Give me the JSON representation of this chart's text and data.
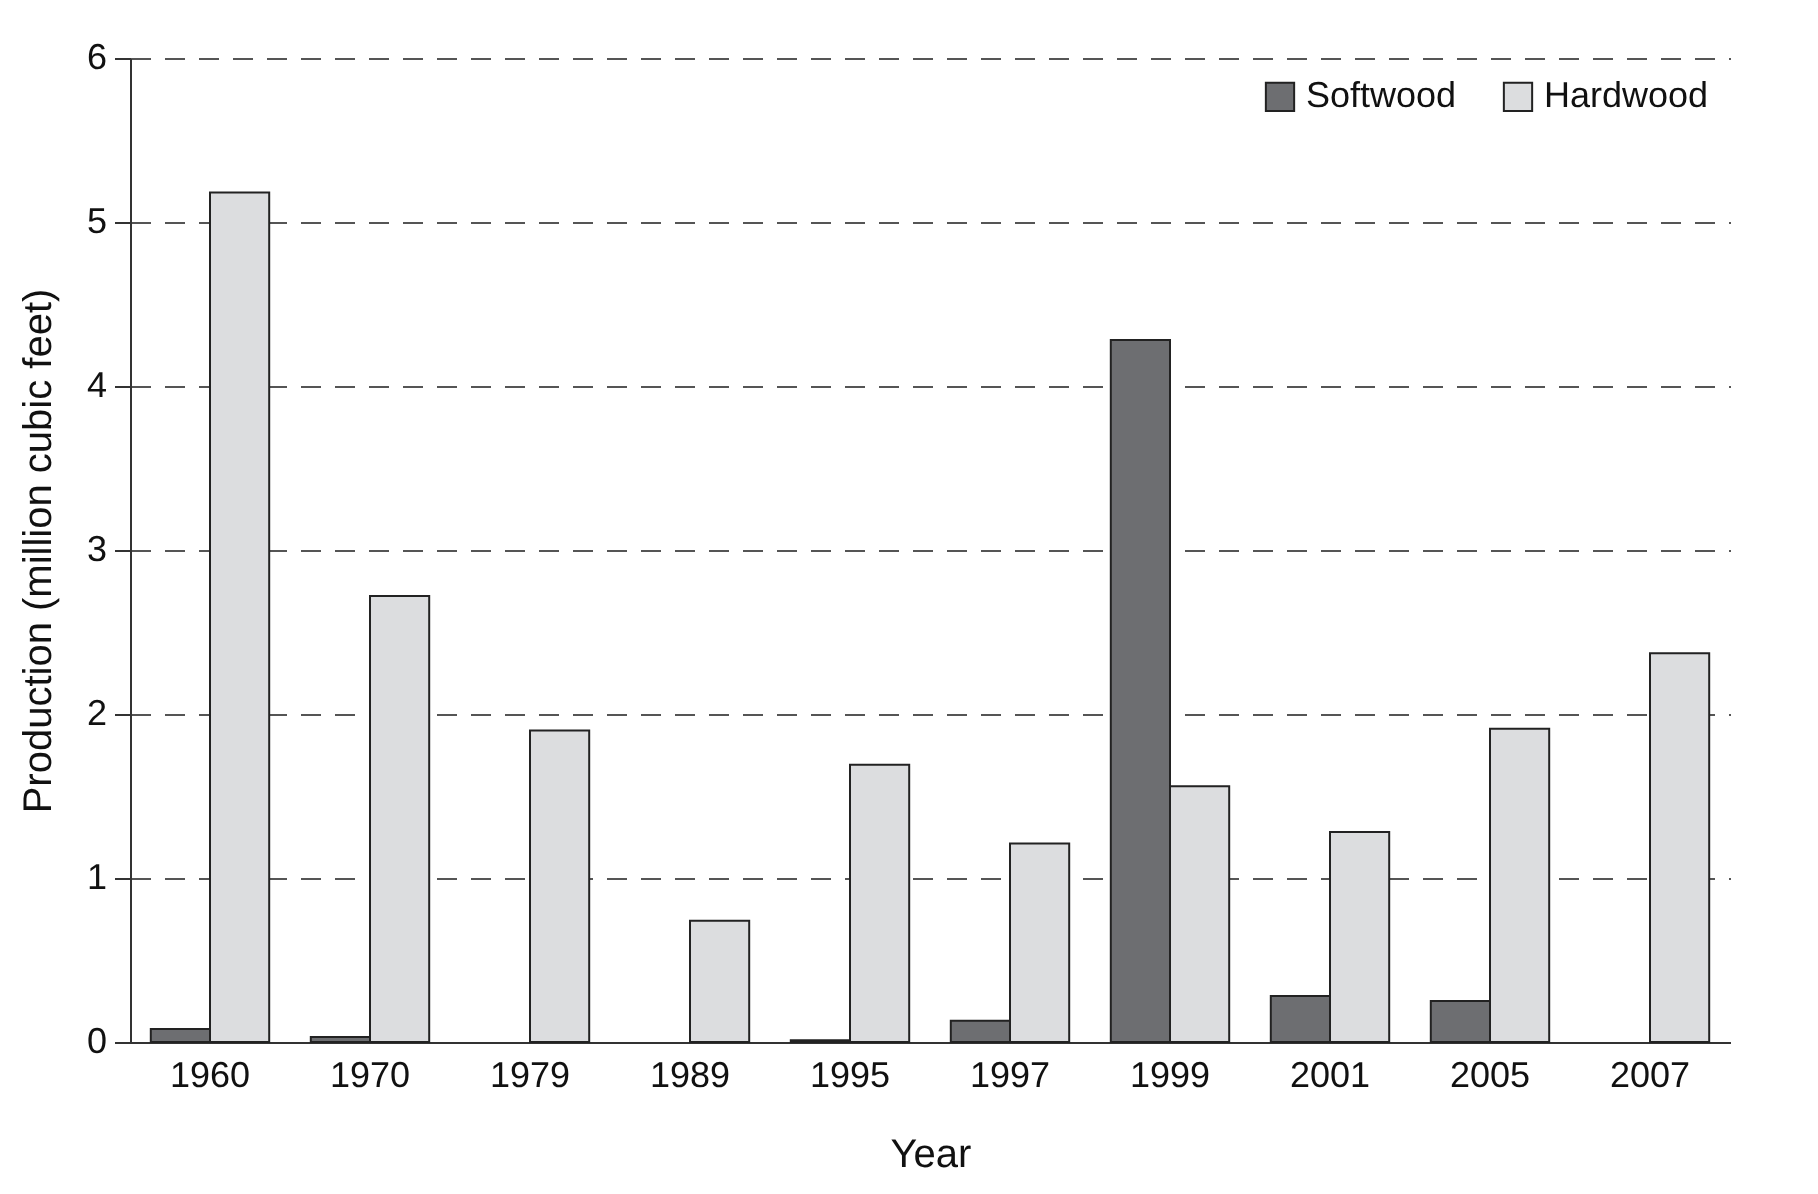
{
  "chart_data": {
    "type": "bar",
    "xlabel": "Year",
    "ylabel": "Production (million cubic feet)",
    "categories": [
      "1960",
      "1970",
      "1979",
      "1989",
      "1995",
      "1997",
      "1999",
      "2001",
      "2005",
      "2007"
    ],
    "series": [
      {
        "name": "Softwood",
        "color": "#6d6e71",
        "values": [
          0.08,
          0.03,
          0,
          0,
          0.01,
          0.13,
          4.28,
          0.28,
          0.25,
          0
        ]
      },
      {
        "name": "Hardwood",
        "color": "#dcdddf",
        "values": [
          5.18,
          2.72,
          1.9,
          0.74,
          1.69,
          1.21,
          1.56,
          1.28,
          1.91,
          2.37
        ]
      }
    ],
    "ylim": [
      0,
      6
    ],
    "yticks": [
      0,
      1,
      2,
      3,
      4,
      5,
      6
    ],
    "grid": "y",
    "legend": "top right"
  }
}
